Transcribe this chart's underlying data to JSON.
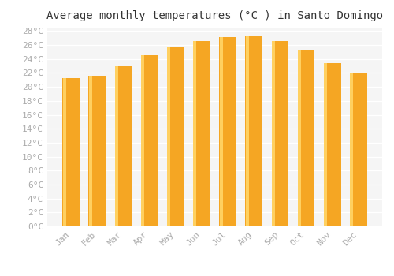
{
  "months": [
    "Jan",
    "Feb",
    "Mar",
    "Apr",
    "May",
    "Jun",
    "Jul",
    "Aug",
    "Sep",
    "Oct",
    "Nov",
    "Dec"
  ],
  "values": [
    21.3,
    21.6,
    23.0,
    24.5,
    25.8,
    26.6,
    27.1,
    27.2,
    26.6,
    25.2,
    23.4,
    21.9
  ],
  "bar_color_main": "#F5A623",
  "bar_color_light": "#FFD060",
  "title": "Average monthly temperatures (°C ) in Santo Domingo",
  "ylim_min": 0,
  "ylim_max": 28,
  "ytick_step": 2,
  "background_color": "#ffffff",
  "plot_bg_color": "#f5f5f5",
  "grid_color": "#ffffff",
  "title_fontsize": 10,
  "tick_fontsize": 8,
  "tick_color": "#aaaaaa",
  "font_family": "monospace",
  "bar_width": 0.65
}
